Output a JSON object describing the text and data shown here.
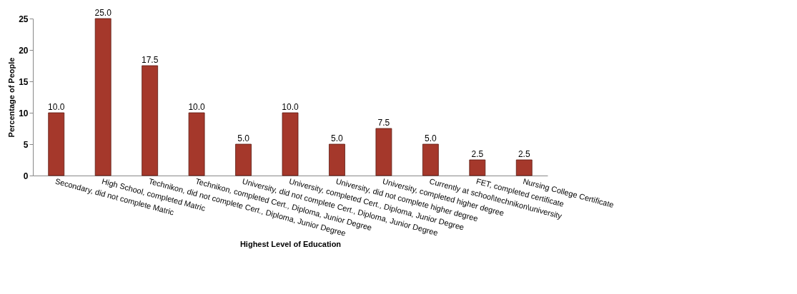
{
  "chart_data": {
    "type": "bar",
    "xlabel": "Highest Level of Education",
    "ylabel": "Percentage of People",
    "categories": [
      "Secondary, did not complete Matric",
      "High School, completed Matric",
      "Technikon, did not complete Cert., Diploma, Junior Degree",
      "Technikon, completed Cert., Diploma, Junior Degree",
      "University, did not complete Cert., Diploma, Junior Degree",
      "University, completed Cert., Diploma, Junior Degree",
      "University, did not complete higher degree",
      "University, completed higher degree",
      "Currently at school\\technikon\\university",
      "FET, completed certificate",
      "Nursing College Certificate"
    ],
    "values": [
      10,
      25,
      17.5,
      10,
      5,
      10,
      5,
      7.5,
      5,
      2.5,
      2.5
    ],
    "value_labels": [
      "10.0",
      "25.0",
      "17.5",
      "10.0",
      "5.0",
      "10.0",
      "5.0",
      "7.5",
      "5.0",
      "2.5",
      "2.5"
    ],
    "color": "#a5382b",
    "ylim": [
      0,
      25
    ],
    "yticks": [
      0,
      5,
      10,
      15,
      20,
      25
    ],
    "grid": false
  }
}
